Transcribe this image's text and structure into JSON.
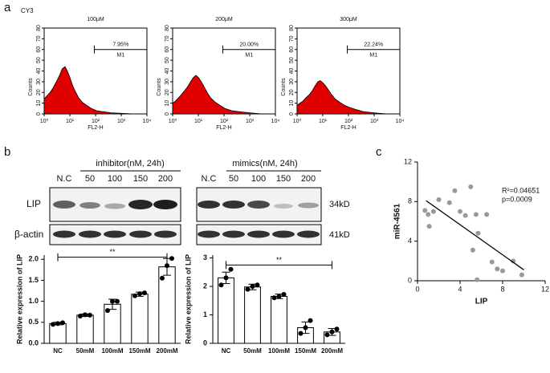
{
  "panels": [
    "a",
    "b",
    "c"
  ],
  "stain": "CY3",
  "blot": {
    "groups": [
      "inhibitor(nM, 24h)",
      "mimics(nM, 24h)"
    ],
    "lanes_left": [
      "N.C",
      "50",
      "100",
      "150",
      "200"
    ],
    "lanes_right": [
      "N.C",
      "50",
      "100",
      "150",
      "200"
    ],
    "rows": [
      "LIP",
      "β-actin"
    ],
    "sizes": [
      "34kD",
      "41kD"
    ]
  },
  "chart_data": [
    {
      "type": "histogram",
      "title": "100μM",
      "xlabel": "FL2-H",
      "ylabel": "Counts",
      "xlog": true,
      "color": "#e00000",
      "x": [
        1,
        1.3,
        1.7,
        2.2,
        3,
        4,
        5,
        6.5,
        8,
        10,
        13,
        17,
        22,
        30,
        45,
        70,
        110,
        200,
        400,
        1000,
        3000,
        10000
      ],
      "values": [
        14,
        17,
        20,
        24,
        30,
        36,
        42,
        44,
        40,
        34,
        26,
        20,
        15,
        11,
        8,
        5,
        3,
        2,
        1,
        0.5,
        0,
        0
      ],
      "xlim": [
        1,
        10000
      ],
      "xticks": [
        {
          "value": 1,
          "label": "10⁰"
        },
        {
          "value": 10,
          "label": "10¹"
        },
        {
          "value": 100,
          "label": "10²"
        },
        {
          "value": 1000,
          "label": "10³"
        },
        {
          "value": 10000,
          "label": "10⁴"
        }
      ],
      "ylim": [
        0,
        80
      ],
      "yticks": [
        0,
        10,
        20,
        30,
        40,
        50,
        60,
        70,
        80
      ],
      "gate": {
        "range": [
          90,
          10000
        ],
        "level": 60,
        "label": "7.95%",
        "name": "M1"
      }
    },
    {
      "type": "histogram",
      "title": "200μM",
      "xlabel": "FL2-H",
      "ylabel": "Counts",
      "xlog": true,
      "color": "#e00000",
      "x": [
        1,
        1.3,
        1.7,
        2.2,
        3,
        4,
        5,
        6.5,
        8,
        10,
        13,
        17,
        22,
        30,
        45,
        70,
        110,
        200,
        400,
        1000,
        3000,
        10000
      ],
      "values": [
        10,
        12,
        15,
        18,
        22,
        26,
        30,
        34,
        36,
        34,
        30,
        25,
        20,
        15,
        11,
        8,
        5,
        3,
        2,
        1,
        0,
        0
      ],
      "xlim": [
        1,
        10000
      ],
      "xticks": [
        {
          "value": 1,
          "label": "10⁰"
        },
        {
          "value": 10,
          "label": "10¹"
        },
        {
          "value": 100,
          "label": "10²"
        },
        {
          "value": 1000,
          "label": "10³"
        },
        {
          "value": 10000,
          "label": "10⁴"
        }
      ],
      "ylim": [
        0,
        80
      ],
      "yticks": [
        0,
        10,
        20,
        30,
        40,
        50,
        60,
        70,
        80
      ],
      "gate": {
        "range": [
          90,
          10000
        ],
        "level": 60,
        "label": "20.00%",
        "name": "M1"
      }
    },
    {
      "type": "histogram",
      "title": "300μM",
      "xlabel": "FL2-H",
      "ylabel": "Counts",
      "xlog": true,
      "color": "#e00000",
      "x": [
        1,
        1.3,
        1.7,
        2.2,
        3,
        4,
        5,
        6.5,
        8,
        10,
        13,
        17,
        22,
        30,
        45,
        70,
        110,
        200,
        400,
        1000,
        3000,
        10000
      ],
      "values": [
        8,
        10,
        12,
        15,
        18,
        22,
        26,
        30,
        31,
        29,
        26,
        22,
        18,
        14,
        11,
        8,
        6,
        4,
        2,
        1,
        0,
        0
      ],
      "xlim": [
        1,
        10000
      ],
      "xticks": [
        {
          "value": 1,
          "label": "10⁰"
        },
        {
          "value": 10,
          "label": "10¹"
        },
        {
          "value": 100,
          "label": "10²"
        },
        {
          "value": 1000,
          "label": "10³"
        },
        {
          "value": 10000,
          "label": "10⁴"
        }
      ],
      "ylim": [
        0,
        80
      ],
      "yticks": [
        0,
        10,
        20,
        30,
        40,
        50,
        60,
        70,
        80
      ],
      "gate": {
        "range": [
          90,
          10000
        ],
        "level": 60,
        "label": "22.24%",
        "name": "M1"
      }
    },
    {
      "type": "bar",
      "ylabel": "Relative expression of LIP",
      "color": "#ffffff",
      "categories": [
        "NC",
        "50mM",
        "100mM",
        "150mM",
        "200mM"
      ],
      "values": [
        0.47,
        0.67,
        0.93,
        1.17,
        1.82
      ],
      "errors": [
        0.03,
        0.03,
        0.12,
        0.05,
        0.2
      ],
      "replicates": [
        [
          0.45,
          0.47,
          0.49
        ],
        [
          0.65,
          0.68,
          0.67
        ],
        [
          0.78,
          1.0,
          1.0
        ],
        [
          1.13,
          1.18,
          1.2
        ],
        [
          1.55,
          1.85,
          2.02
        ]
      ],
      "ylim": [
        0,
        2.1
      ],
      "yticks": [
        {
          "value": 0,
          "label": "0.0"
        },
        {
          "value": 0.5,
          "label": "0.5"
        },
        {
          "value": 1,
          "label": "1.0"
        },
        {
          "value": 1.5,
          "label": "1.5"
        },
        {
          "value": 2,
          "label": "2.0"
        }
      ],
      "significance": {
        "from": 0,
        "to": 4,
        "level": 2.05,
        "label": "**"
      }
    },
    {
      "type": "bar",
      "ylabel": "Relative expression of LIP",
      "color": "#ffffff",
      "categories": [
        "NC",
        "50mM",
        "100mM",
        "150mM",
        "200mM"
      ],
      "values": [
        2.3,
        1.98,
        1.65,
        0.55,
        0.4
      ],
      "errors": [
        0.2,
        0.1,
        0.08,
        0.2,
        0.12
      ],
      "replicates": [
        [
          2.05,
          2.3,
          2.6
        ],
        [
          1.9,
          2.0,
          2.05
        ],
        [
          1.6,
          1.65,
          1.72
        ],
        [
          0.35,
          0.55,
          0.8
        ],
        [
          0.3,
          0.4,
          0.5
        ]
      ],
      "ylim": [
        0,
        3.1
      ],
      "yticks": [
        0,
        1,
        2,
        3
      ],
      "significance": {
        "from": 0,
        "to": 4,
        "level": 2.75,
        "label": "**"
      }
    },
    {
      "type": "scatter",
      "xlabel": "LIP",
      "ylabel": "miR-4561",
      "color": "#999999",
      "x": [
        0.7,
        1,
        1.1,
        1.5,
        2,
        3,
        3.5,
        4,
        4.5,
        5,
        5.2,
        5.5,
        5.6,
        5.7,
        6.5,
        7,
        7.5,
        8,
        9,
        9.8
      ],
      "values": [
        7.1,
        6.7,
        5.5,
        7,
        8.2,
        7.9,
        9.1,
        7,
        6.6,
        9.5,
        3.1,
        6.7,
        0.1,
        4.8,
        6.7,
        1.9,
        1.2,
        1,
        2,
        0.6
      ],
      "fit": {
        "x": [
          0.8,
          10
        ],
        "y": [
          8.1,
          1.1
        ]
      },
      "annotations": [
        "R²=0.04651",
        "p=0.0009"
      ],
      "xlim": [
        0,
        12
      ],
      "xticks": [
        0,
        4,
        8,
        12
      ],
      "ylim": [
        0,
        12
      ],
      "yticks": [
        0,
        4,
        8,
        12
      ]
    }
  ]
}
